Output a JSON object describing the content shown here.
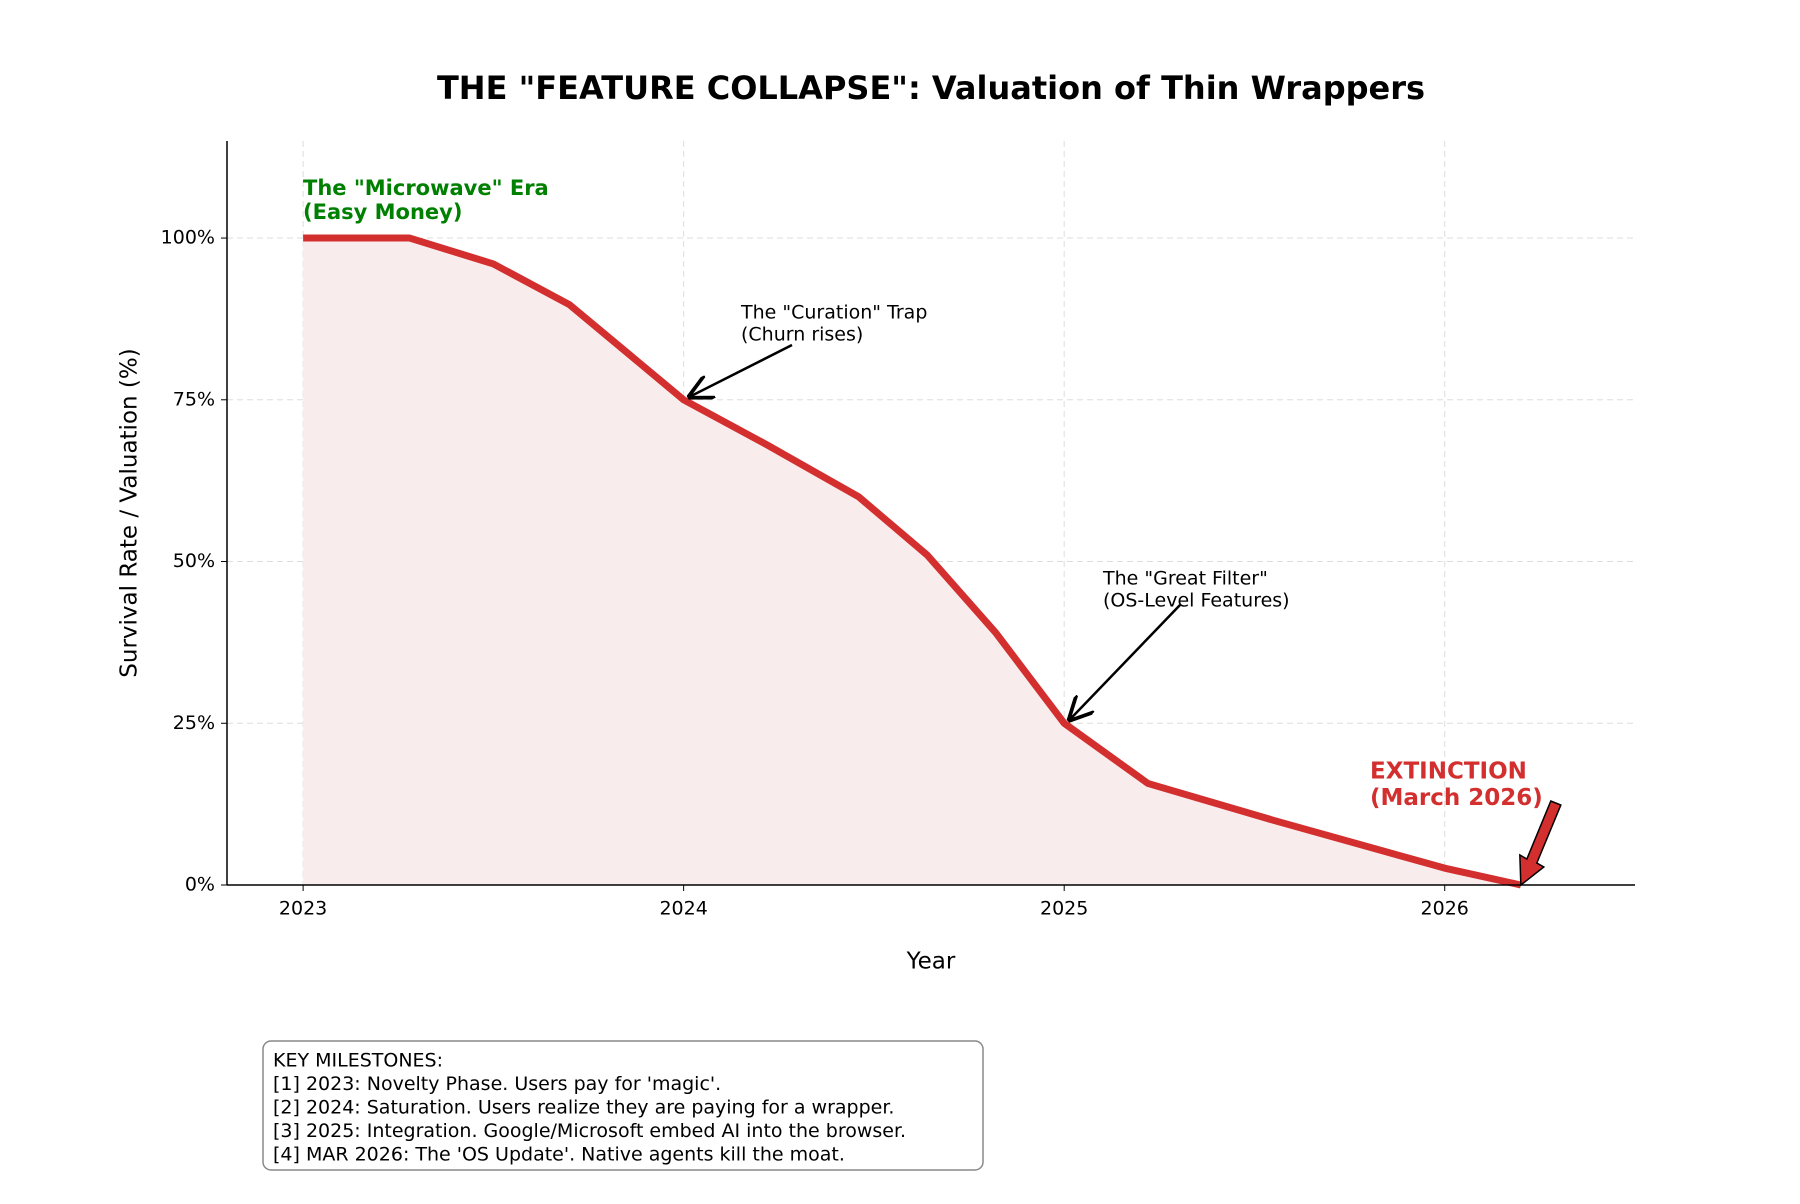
{
  "chart_data": {
    "type": "line",
    "title": "THE \"FEATURE COLLAPSE\": Valuation of Thin Wrappers",
    "xlabel": "Year",
    "ylabel": "Survival Rate / Valuation (%)",
    "x": [
      2023,
      2023.28,
      2023.5,
      2023.7,
      2024,
      2024.22,
      2024.46,
      2024.64,
      2024.82,
      2025,
      2025.22,
      2025.55,
      2026,
      2026.2
    ],
    "series": [
      {
        "color": "#d32f2f",
        "fill": "#f9eced",
        "values": [
          100,
          100,
          96,
          89.7,
          75,
          68,
          60,
          51,
          39,
          25,
          15.7,
          10,
          2.6,
          0
        ]
      }
    ],
    "xlim": [
      2022.8,
      2026.5
    ],
    "xticks": [
      2023,
      2024,
      2025,
      2026
    ],
    "ylim": [
      0,
      115
    ],
    "yticks": [
      {
        "value": 0,
        "label": "0%"
      },
      {
        "value": 25,
        "label": "25%"
      },
      {
        "value": 50,
        "label": "50%"
      },
      {
        "value": 75,
        "label": "75%"
      },
      {
        "value": 100,
        "label": "100%"
      }
    ],
    "grid": true,
    "annotations": [
      {
        "lines": [
          "The \"Microwave\" Era",
          "(Easy Money)"
        ],
        "color": "#008000"
      },
      {
        "lines": [
          "The \"Curation\" Trap",
          "(Churn rises)"
        ],
        "color": "#000000"
      },
      {
        "lines": [
          "The \"Great Filter\"",
          "(OS-Level Features)"
        ],
        "color": "#000000"
      },
      {
        "lines": [
          "EXTINCTION",
          "(March 2026)"
        ],
        "color": "#d32f2f"
      }
    ],
    "notes": [
      "KEY MILESTONES:",
      "[1] 2023: Novelty Phase. Users pay for 'magic'.",
      "[2] 2024: Saturation. Users realize they are paying for a wrapper.",
      "[3] 2025: Integration. Google/Microsoft embed AI into the browser.",
      "[4] MAR 2026: The 'OS Update'. Native agents kill the moat."
    ]
  }
}
